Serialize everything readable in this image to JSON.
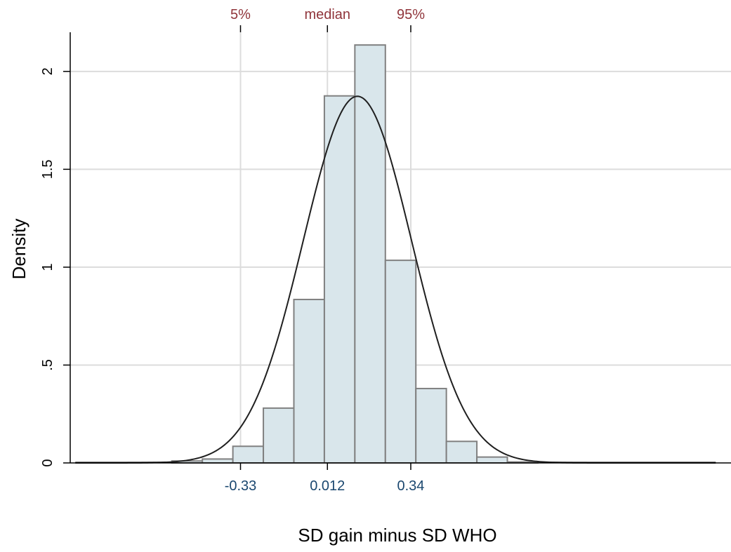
{
  "chart_data": {
    "type": "bar",
    "xlabel": "SD gain minus SD WHO",
    "ylabel": "Density",
    "xlim": [
      -1.0,
      1.6
    ],
    "ylim": [
      0,
      2.2
    ],
    "yticks": [
      0,
      0.5,
      1,
      1.5,
      2
    ],
    "ytick_labels": [
      "0",
      ".5",
      "1",
      "1.5",
      "2"
    ],
    "grid": true,
    "bin_width": 0.12,
    "bin_start": -0.6,
    "bins": [
      {
        "x0": -0.6,
        "x1": -0.48,
        "density": 0.01
      },
      {
        "x0": -0.48,
        "x1": -0.36,
        "density": 0.02
      },
      {
        "x0": -0.36,
        "x1": -0.24,
        "density": 0.085
      },
      {
        "x0": -0.24,
        "x1": -0.12,
        "density": 0.28
      },
      {
        "x0": -0.12,
        "x1": 0.0,
        "density": 0.835
      },
      {
        "x0": 0.0,
        "x1": 0.12,
        "density": 1.875
      },
      {
        "x0": 0.12,
        "x1": 0.24,
        "density": 2.135
      },
      {
        "x0": 0.24,
        "x1": 0.36,
        "density": 1.035
      },
      {
        "x0": 0.36,
        "x1": 0.48,
        "density": 0.38
      },
      {
        "x0": 0.48,
        "x1": 0.6,
        "density": 0.11
      },
      {
        "x0": 0.6,
        "x1": 0.72,
        "density": 0.03
      },
      {
        "x0": 0.72,
        "x1": 0.84,
        "density": 0.005
      }
    ],
    "baseline_segment": [
      -0.98,
      1.54
    ],
    "normal_curve": {
      "mean": 0.13,
      "sd": 0.213
    },
    "percentile_lines": [
      {
        "label": "5%",
        "value_label": "-0.33",
        "x": -0.33
      },
      {
        "label": "median",
        "value_label": "0.012",
        "x": 0.012
      },
      {
        "label": "95%",
        "value_label": "0.34",
        "x": 0.34
      }
    ],
    "colors": {
      "bar_fill": "#d9e6eb",
      "bar_edge": "#808080",
      "curve": "#1f1f1f",
      "grid": "#dcdcdc",
      "percentile_label": "#90353b",
      "percentile_value": "#1a476f"
    }
  }
}
